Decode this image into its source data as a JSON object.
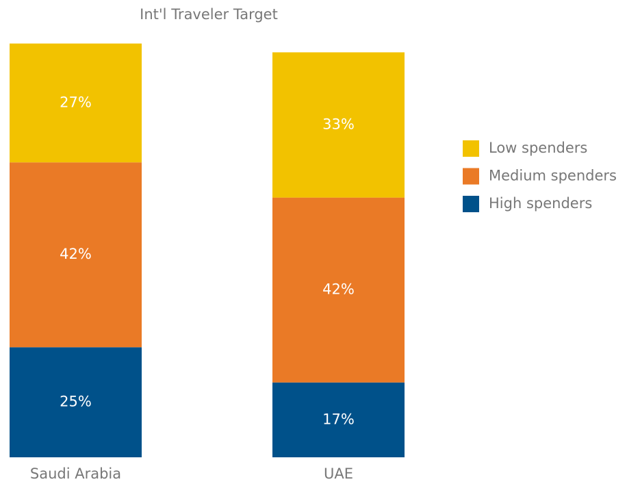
{
  "chart_data": {
    "type": "stacked_bar",
    "title": "Int'l Traveler Target",
    "categories": [
      "Saudi Arabia",
      "UAE"
    ],
    "series": [
      {
        "name": "High spenders",
        "color": "#00518a",
        "values": [
          25,
          17
        ],
        "value_labels": [
          "25%",
          "17%"
        ]
      },
      {
        "name": "Medium spenders",
        "color": "#ea7a26",
        "values": [
          42,
          42
        ],
        "value_labels": [
          "42%",
          "42%"
        ]
      },
      {
        "name": "Low spenders",
        "color": "#f2c200",
        "values": [
          27,
          33
        ],
        "value_labels": [
          "27%",
          "33%"
        ]
      }
    ],
    "ylim": [
      0,
      100
    ],
    "legend": "right"
  }
}
